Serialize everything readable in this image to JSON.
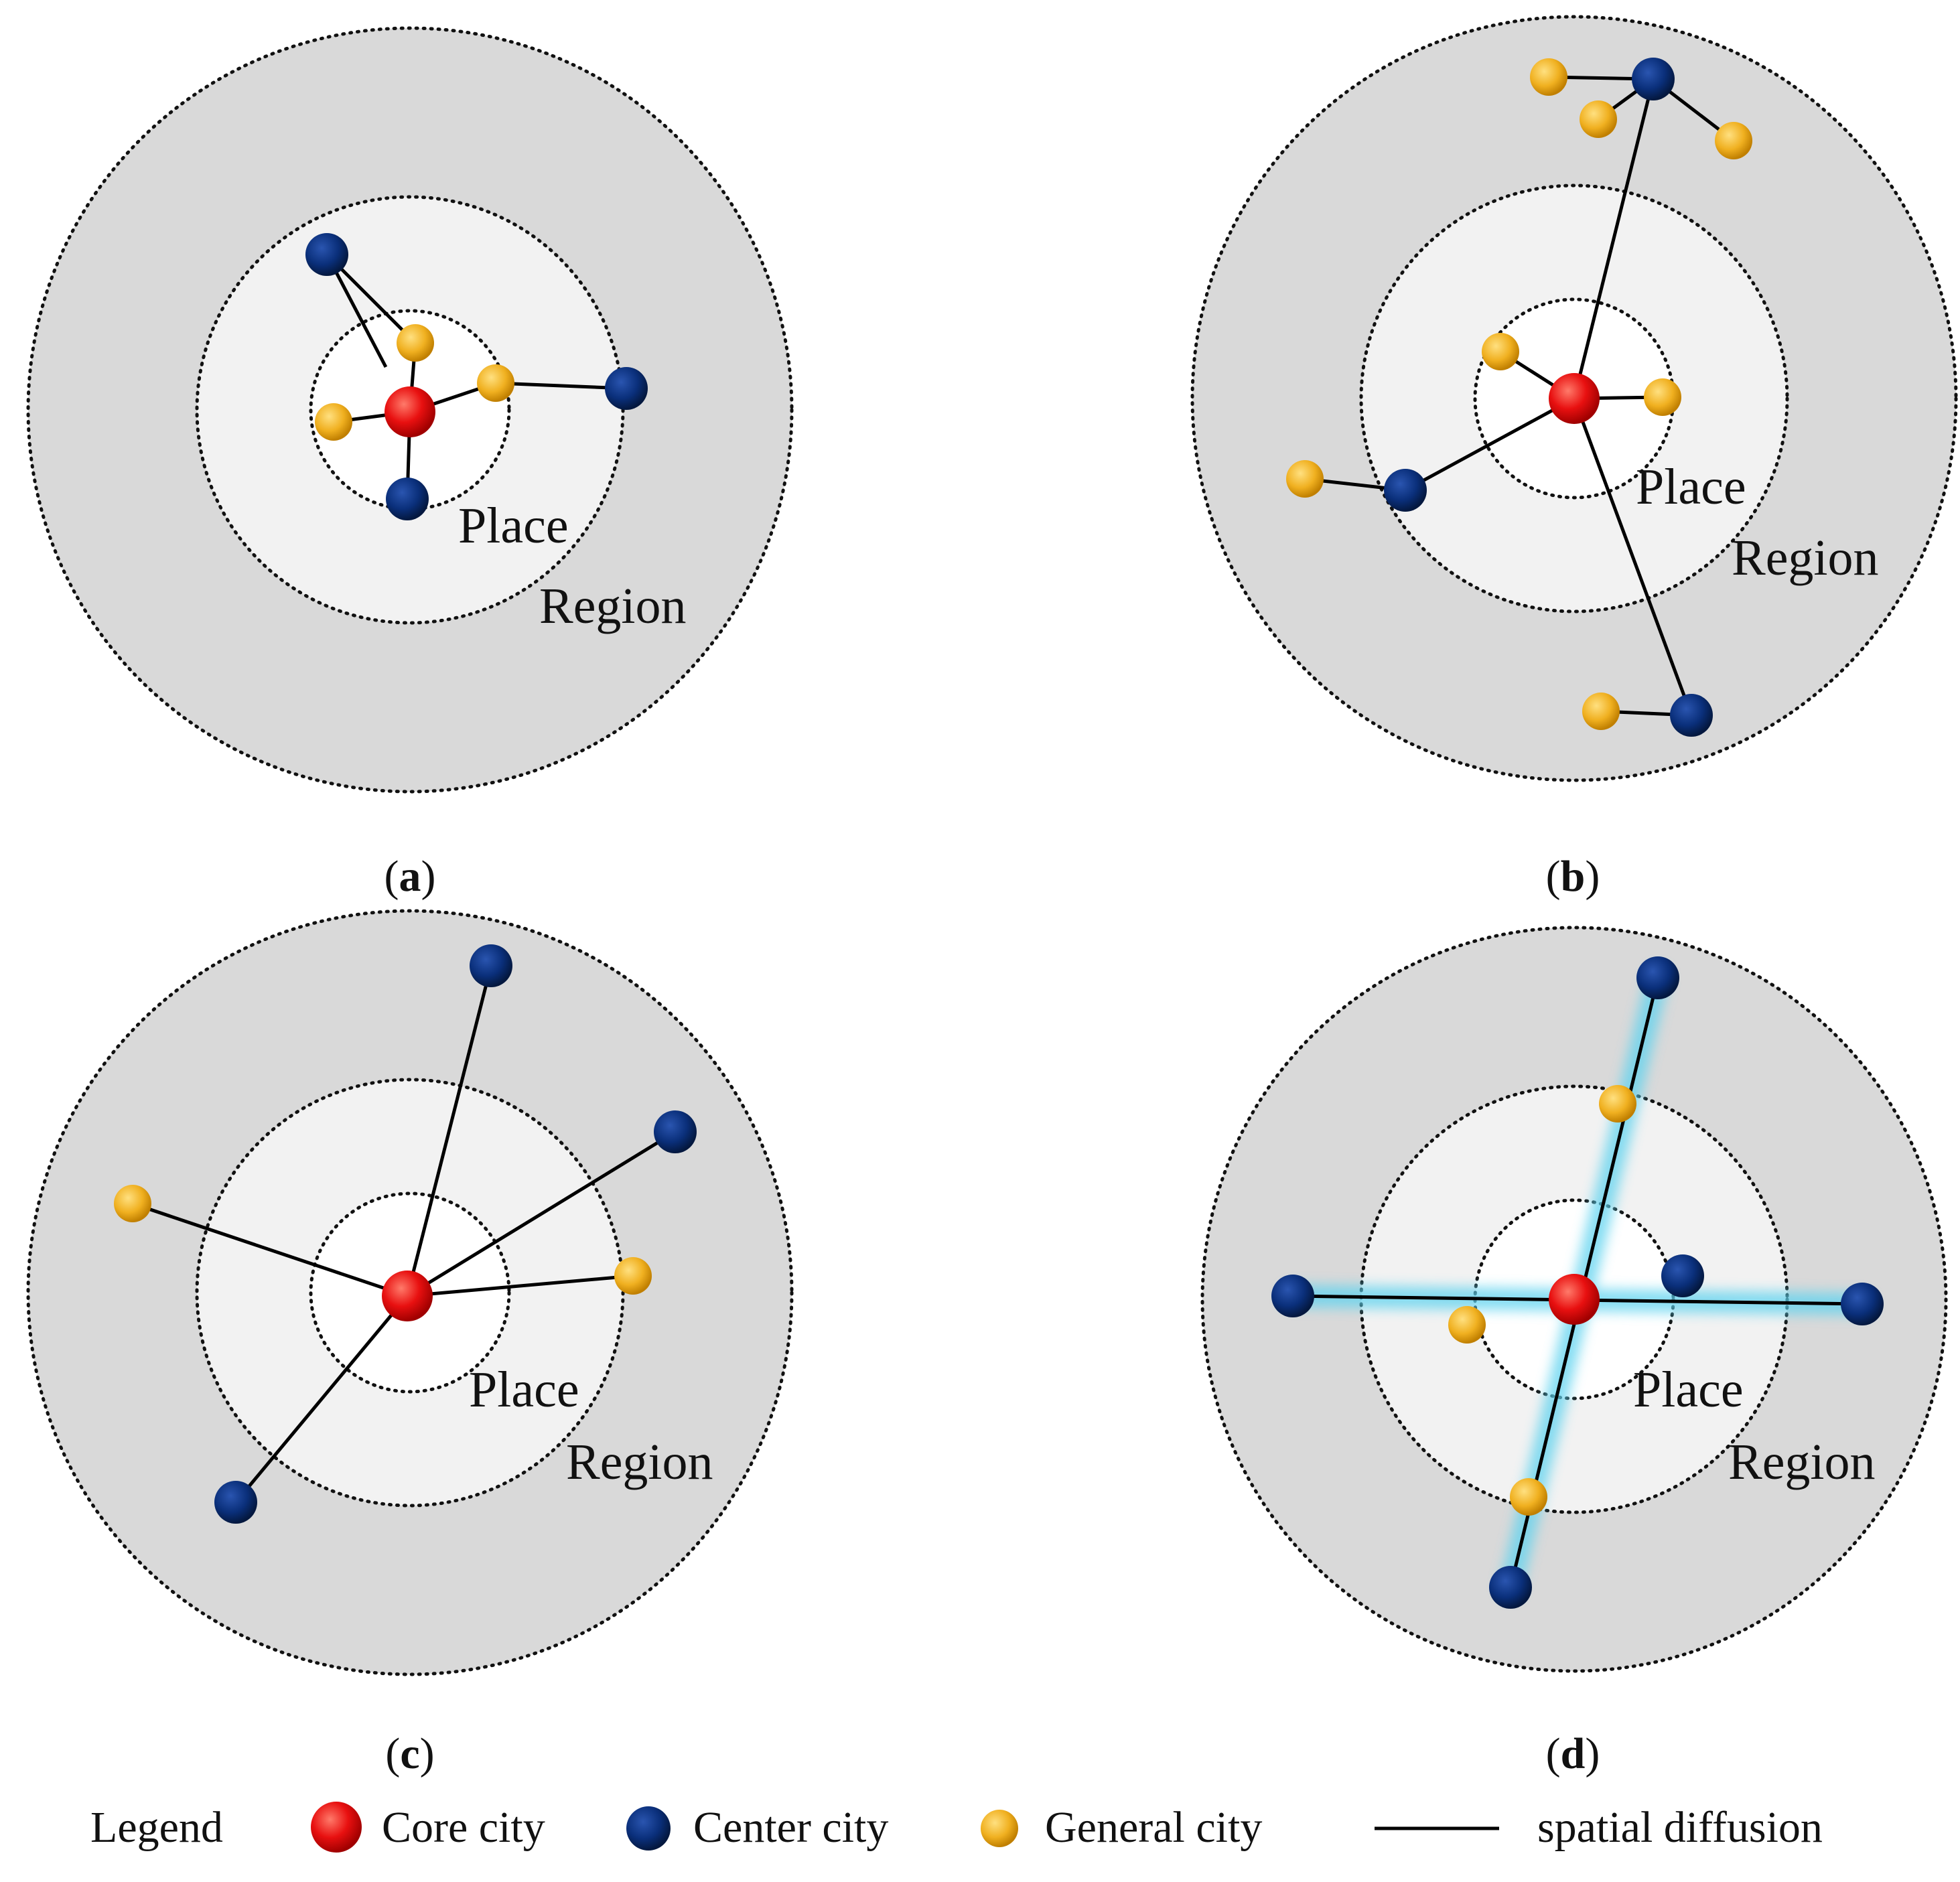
{
  "colors": {
    "core_city": "#e01010",
    "center_city": "#0a2f7a",
    "general_city": "#f0b020",
    "region_fill": "#d9d9d9",
    "place_fill": "#f2f2f2",
    "inner_fill": "#ffffff",
    "diffusion_line": "#000000",
    "glow": "#5fd3ef"
  },
  "ring_labels": {
    "place": "Place",
    "region": "Region"
  },
  "panels": [
    {
      "id": "a",
      "label_open": "(",
      "label_letter": "a",
      "label_close": ")"
    },
    {
      "id": "b",
      "label_open": "(",
      "label_letter": "b",
      "label_close": ")"
    },
    {
      "id": "c",
      "label_open": "(",
      "label_letter": "c",
      "label_close": ")"
    },
    {
      "id": "d",
      "label_open": "(",
      "label_letter": "d",
      "label_close": ")"
    }
  ],
  "legend": {
    "title": "Legend",
    "core_city": "Core city",
    "center_city": "Center city",
    "general_city": "General city",
    "spatial_diffusion": "spatial diffusion"
  }
}
